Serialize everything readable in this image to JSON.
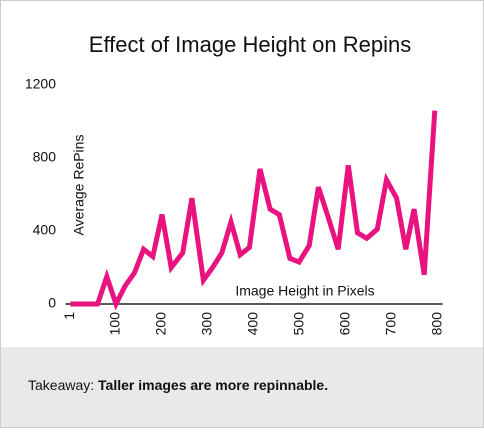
{
  "chart_data": {
    "type": "line",
    "title": "Effect of Image Height on Repins",
    "x_label": "Image Height in Pixels",
    "y_label": "Average RePins",
    "x": [
      1,
      60,
      80,
      100,
      120,
      140,
      160,
      180,
      200,
      220,
      245,
      265,
      290,
      310,
      330,
      350,
      370,
      390,
      413,
      435,
      455,
      478,
      498,
      520,
      540,
      562,
      583,
      605,
      625,
      645,
      668,
      688,
      710,
      730,
      748,
      770,
      793
    ],
    "series": [
      {
        "name": "Average RePins",
        "color": "#e8137f",
        "values": [
          0,
          0,
          150,
          0,
          100,
          170,
          300,
          260,
          490,
          200,
          280,
          580,
          130,
          200,
          280,
          450,
          270,
          310,
          740,
          520,
          490,
          250,
          230,
          320,
          640,
          470,
          300,
          760,
          390,
          360,
          410,
          680,
          580,
          300,
          520,
          160,
          1060
        ]
      }
    ],
    "xlim": [
      -10,
      810
    ],
    "xticks": [
      1,
      100,
      200,
      300,
      400,
      500,
      600,
      700,
      800
    ],
    "ylim": [
      0,
      1200
    ],
    "yticks": [
      0,
      400,
      800,
      1200
    ],
    "grid": false
  },
  "takeaway": {
    "label": "Takeaway:",
    "text": "Taller images are more repinnable."
  }
}
